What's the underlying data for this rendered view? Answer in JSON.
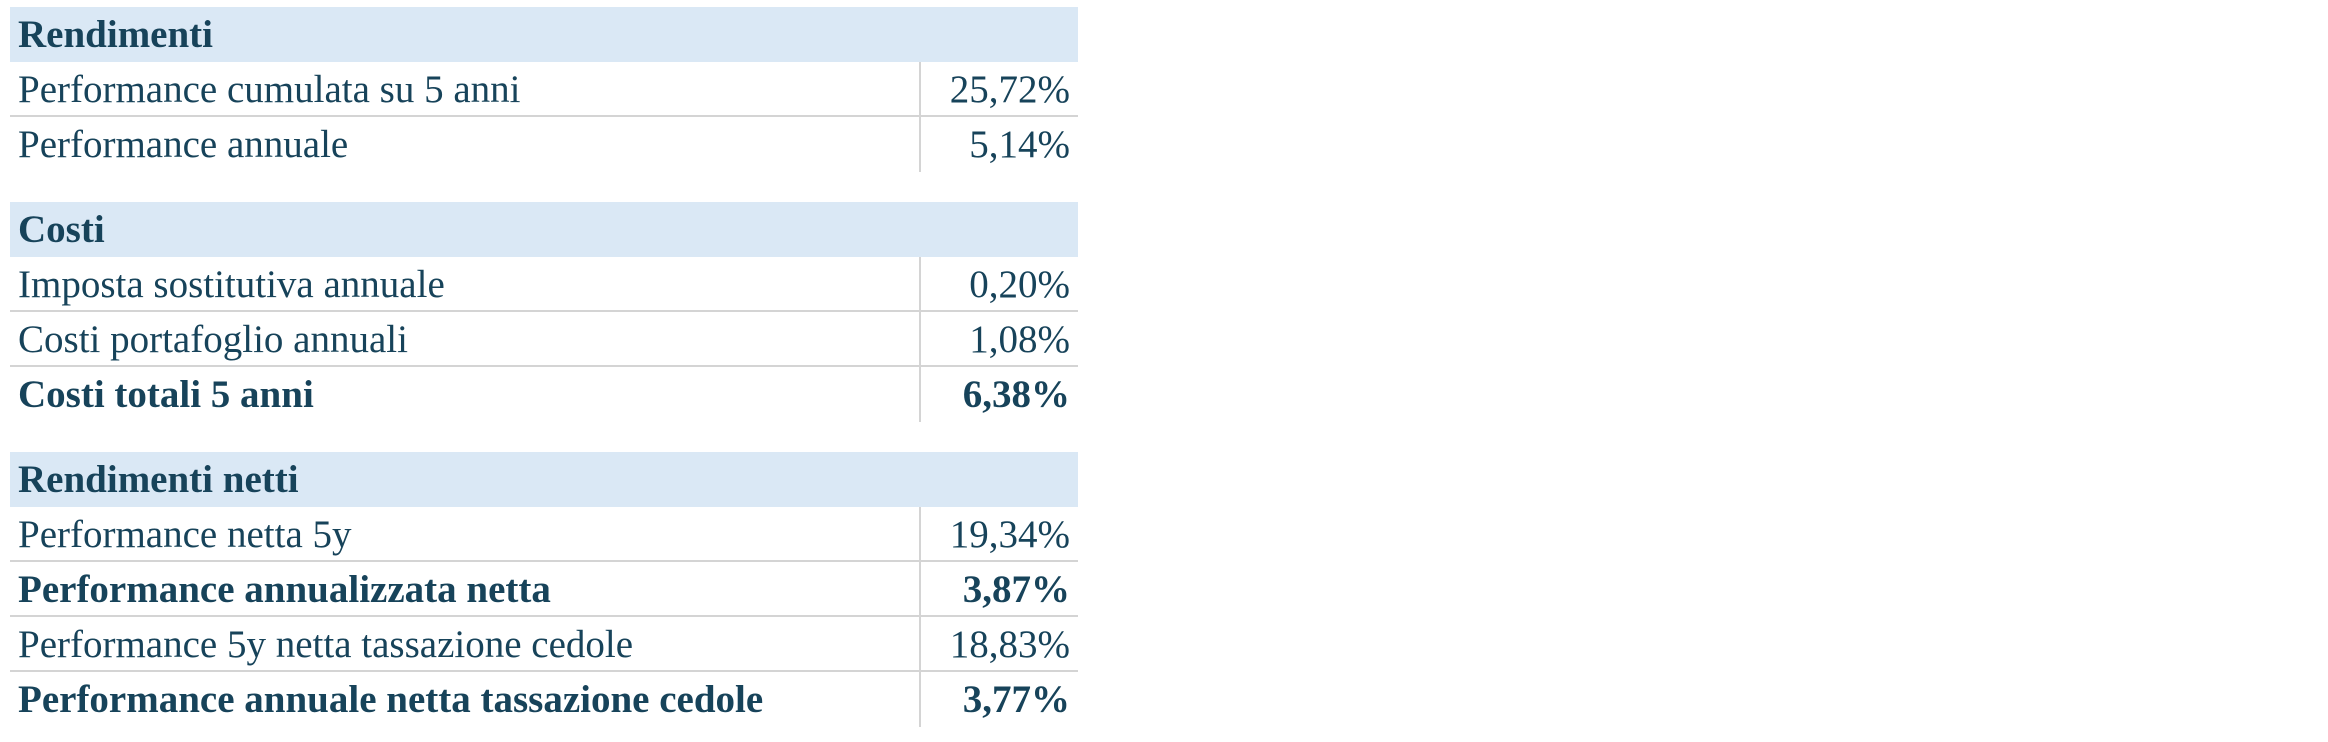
{
  "sections": [
    {
      "title": "Rendimenti",
      "rows": [
        {
          "label": "Performance cumulata su 5 anni",
          "value": "25,72%",
          "bold": false
        },
        {
          "label": "Performance annuale",
          "value": "5,14%",
          "bold": false
        }
      ]
    },
    {
      "title": "Costi",
      "rows": [
        {
          "label": "Imposta sostitutiva annuale",
          "value": "0,20%",
          "bold": false
        },
        {
          "label": "Costi portafoglio annuali",
          "value": "1,08%",
          "bold": false
        },
        {
          "label": "Costi totali 5 anni",
          "value": "6,38%",
          "bold": true
        }
      ]
    },
    {
      "title": "Rendimenti netti",
      "rows": [
        {
          "label": "Performance netta 5y",
          "value": "19,34%",
          "bold": false
        },
        {
          "label": "Performance annualizzata netta",
          "value": "3,87%",
          "bold": true
        },
        {
          "label": "Performance 5y netta tassazione cedole",
          "value": "18,83%",
          "bold": false
        },
        {
          "label": "Performance annuale netta tassazione cedole",
          "value": "3,77%",
          "bold": true
        }
      ]
    }
  ]
}
